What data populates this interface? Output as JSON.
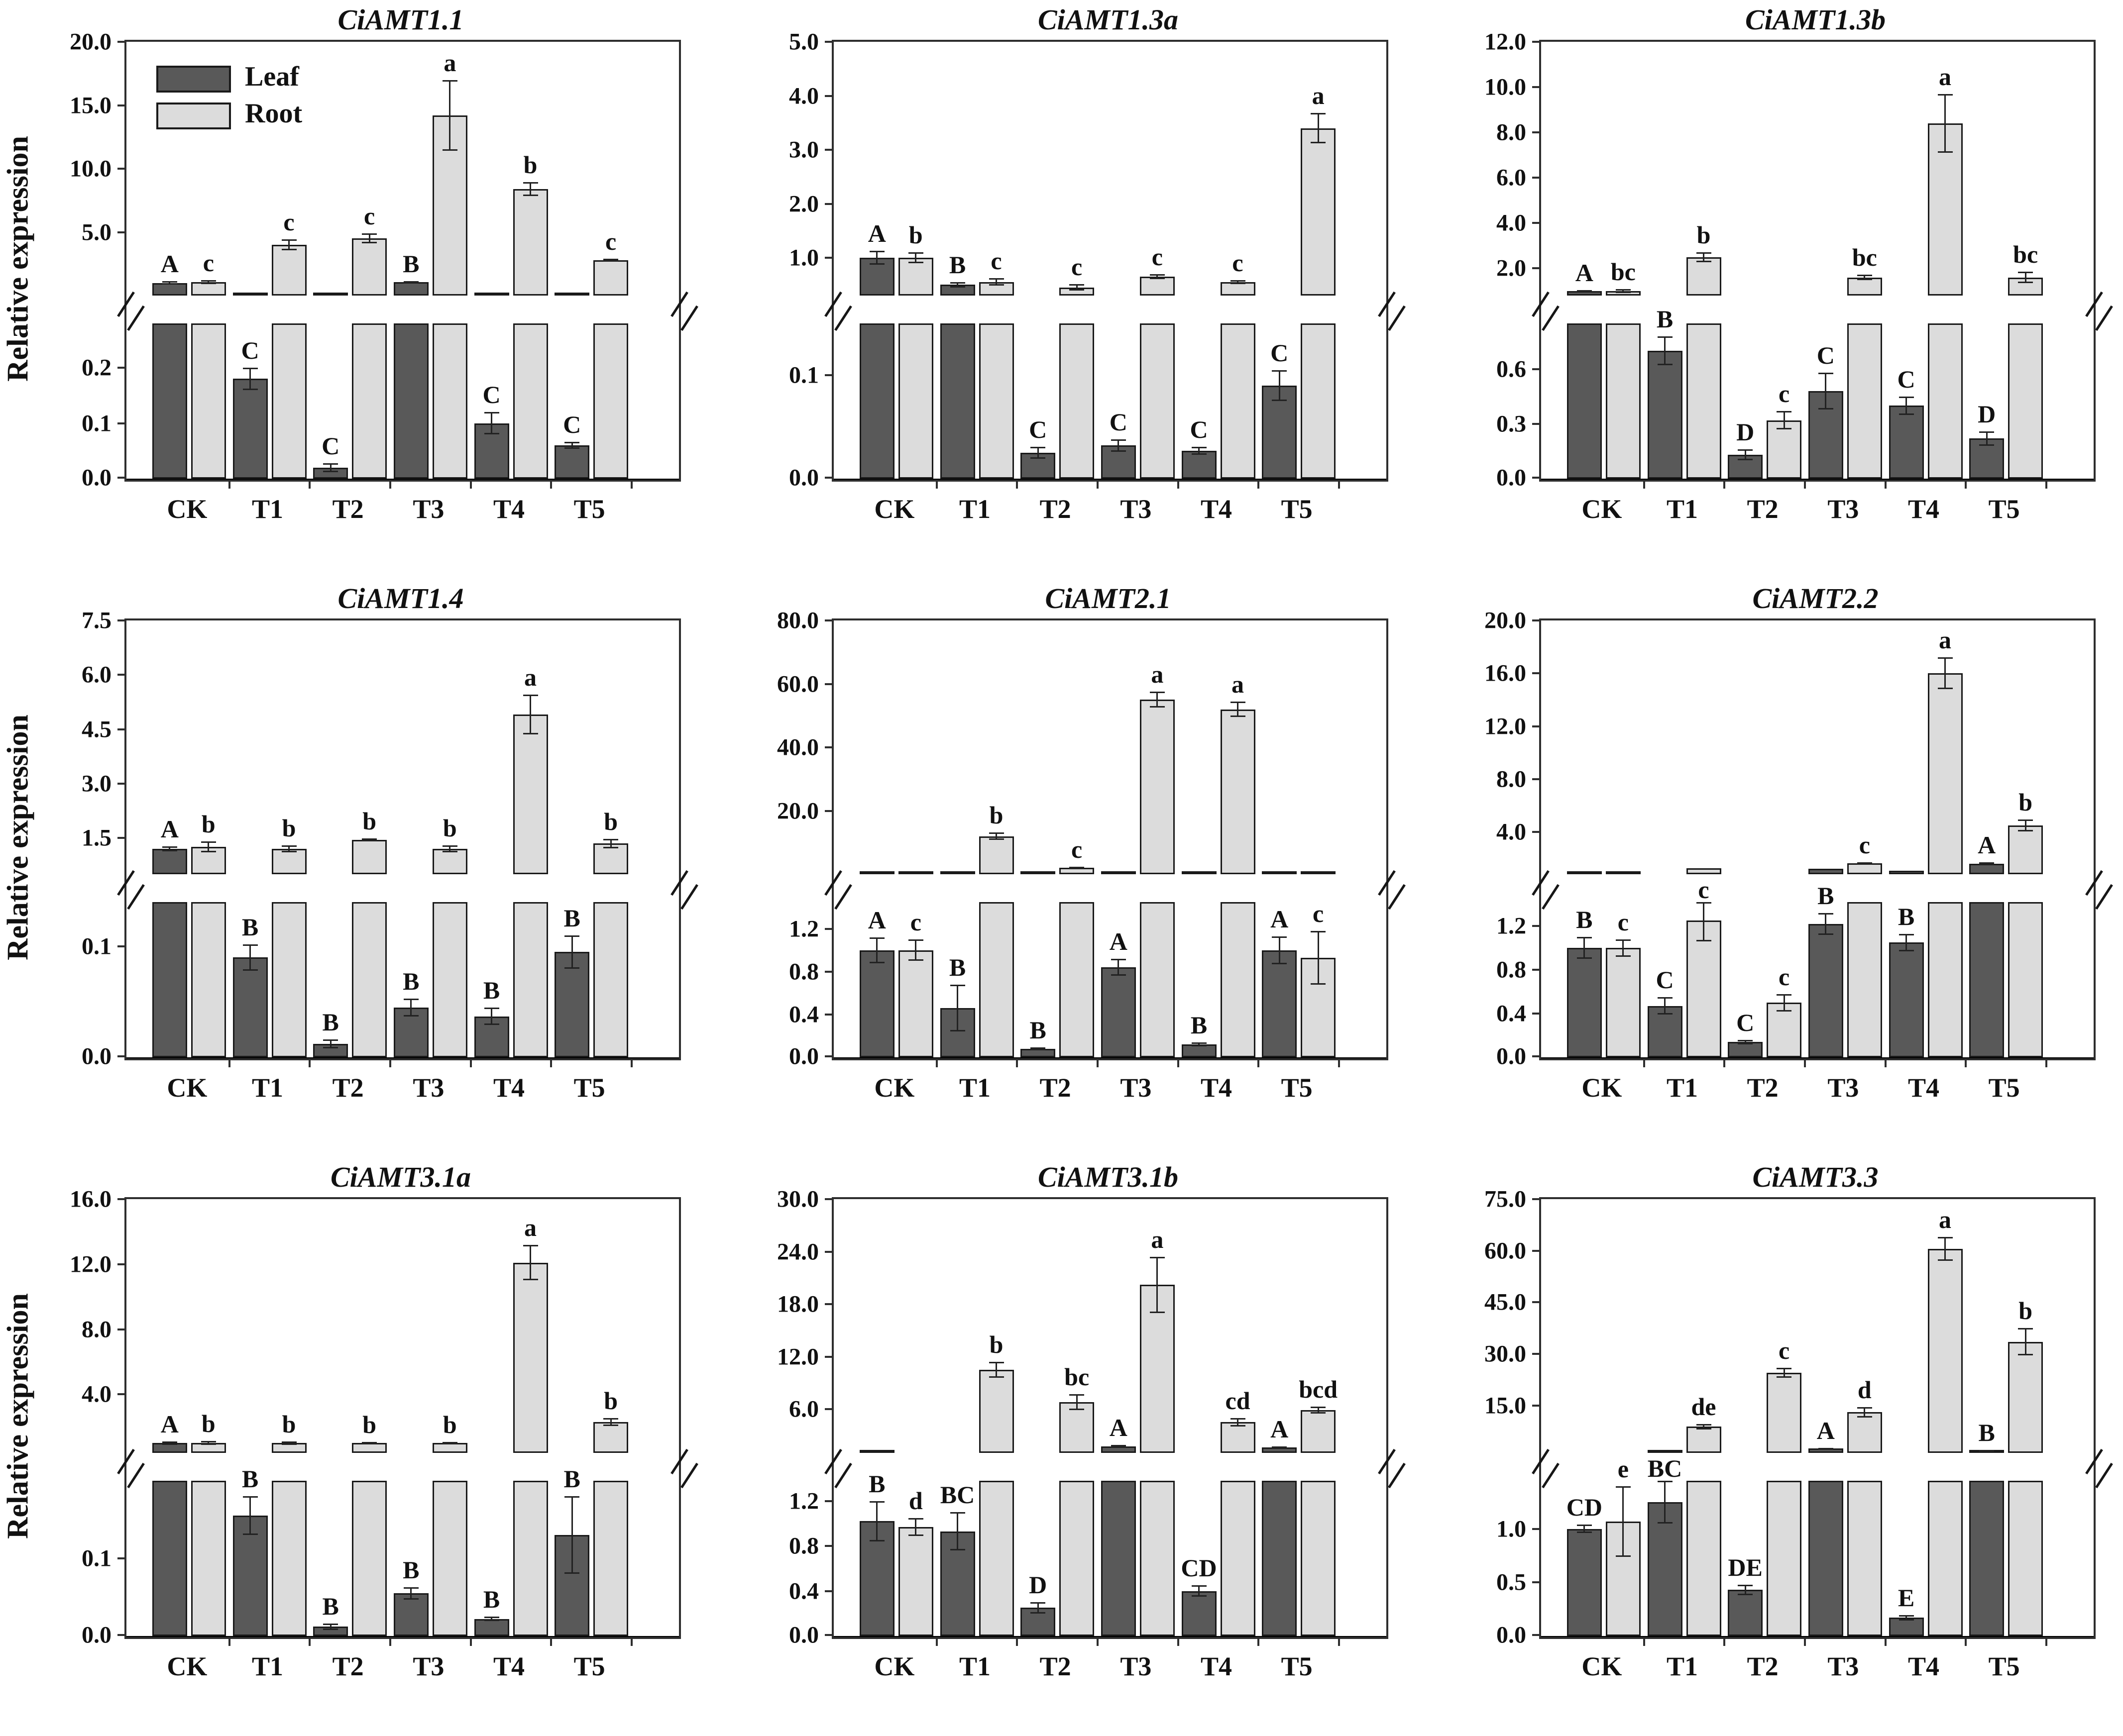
{
  "figure": {
    "ylabel": "Relative expression",
    "categories": [
      "CK",
      "T1",
      "T2",
      "T3",
      "T4",
      "T5"
    ],
    "legend": {
      "items": [
        {
          "label": "Leaf"
        },
        {
          "label": "Root"
        }
      ],
      "position": "top-left-first-panel"
    },
    "colors": {
      "leaf_fill": "#595959",
      "root_fill": "#dcdcdc",
      "bar_border": "#1a1a1a",
      "frame": "#2e2e2e",
      "text": "#111111",
      "background": "#ffffff"
    }
  },
  "chart_data": [
    {
      "type": "bar",
      "title": "CiAMT1.1",
      "categories": [
        "CK",
        "T1",
        "T2",
        "T3",
        "T4",
        "T5"
      ],
      "axis": {
        "upper_ticks": [
          5,
          10,
          15,
          20
        ],
        "upper_tick_labels": [
          "5.0",
          "10.0",
          "15.0",
          "20.0"
        ],
        "upper_start": 0,
        "upper_max": 20,
        "lower_ticks": [
          0,
          0.1,
          0.2
        ],
        "lower_tick_labels": [
          "0.0",
          "0.1",
          "0.2"
        ],
        "lower_max": 0.28,
        "broken": true
      },
      "series": [
        {
          "name": "Leaf",
          "values": [
            1.0,
            0.18,
            0.02,
            1.05,
            0.1,
            0.06
          ],
          "errors": [
            0.15,
            0.02,
            0.008,
            0.1,
            0.02,
            0.006
          ],
          "letters": [
            "A",
            "C",
            "C",
            "B",
            "C",
            "C"
          ]
        },
        {
          "name": "Root",
          "values": [
            1.05,
            4.0,
            4.5,
            14.2,
            8.4,
            2.8
          ],
          "errors": [
            0.15,
            0.45,
            0.4,
            2.8,
            0.55,
            0.12
          ],
          "letters": [
            "c",
            "c",
            "c",
            "a",
            "b",
            "c"
          ]
        }
      ]
    },
    {
      "type": "bar",
      "title": "CiAMT1.3a",
      "categories": [
        "CK",
        "T1",
        "T2",
        "T3",
        "T4",
        "T5"
      ],
      "axis": {
        "upper_ticks": [
          1,
          2,
          3,
          4,
          5
        ],
        "upper_tick_labels": [
          "1.0",
          "2.0",
          "3.0",
          "4.0",
          "5.0"
        ],
        "upper_start": 0.3,
        "upper_max": 5,
        "lower_ticks": [
          0,
          0.1
        ],
        "lower_tick_labels": [
          "0.0",
          "0.1"
        ],
        "lower_max": 0.15,
        "broken": true
      },
      "series": [
        {
          "name": "Leaf",
          "values": [
            1.0,
            0.5,
            0.025,
            0.032,
            0.027,
            0.09
          ],
          "errors": [
            0.13,
            0.05,
            0.006,
            0.006,
            0.004,
            0.015
          ],
          "letters": [
            "A",
            "B",
            "C",
            "C",
            "C",
            "C"
          ]
        },
        {
          "name": "Root",
          "values": [
            1.0,
            0.55,
            0.45,
            0.65,
            0.55,
            3.4
          ],
          "errors": [
            0.1,
            0.07,
            0.06,
            0.05,
            0.04,
            0.28
          ],
          "letters": [
            "b",
            "c",
            "c",
            "c",
            "c",
            "a"
          ]
        }
      ]
    },
    {
      "type": "bar",
      "title": "CiAMT1.3b",
      "categories": [
        "CK",
        "T1",
        "T2",
        "T3",
        "T4",
        "T5"
      ],
      "axis": {
        "upper_ticks": [
          2,
          4,
          6,
          8,
          10,
          12
        ],
        "upper_tick_labels": [
          "2.0",
          "4.0",
          "6.0",
          "8.0",
          "10.0",
          "12.0"
        ],
        "upper_start": 0.8,
        "upper_max": 12,
        "lower_ticks": [
          0,
          0.3,
          0.6
        ],
        "lower_tick_labels": [
          "0.0",
          "0.3",
          "0.6"
        ],
        "lower_max": 0.85,
        "broken": true
      },
      "series": [
        {
          "name": "Leaf",
          "values": [
            1.0,
            0.7,
            0.13,
            0.48,
            0.4,
            0.22
          ],
          "errors": [
            0.05,
            0.08,
            0.03,
            0.1,
            0.05,
            0.04
          ],
          "letters": [
            "A",
            "B",
            "D",
            "C",
            "C",
            "D"
          ]
        },
        {
          "name": "Root",
          "values": [
            1.0,
            2.5,
            0.32,
            1.6,
            8.4,
            1.6
          ],
          "errors": [
            0.08,
            0.22,
            0.05,
            0.12,
            1.3,
            0.25
          ],
          "letters": [
            "bc",
            "b",
            "c",
            "bc",
            "a",
            "bc"
          ]
        }
      ]
    },
    {
      "type": "bar",
      "title": "CiAMT1.4",
      "categories": [
        "CK",
        "T1",
        "T2",
        "T3",
        "T4",
        "T5"
      ],
      "axis": {
        "upper_ticks": [
          1.5,
          3.0,
          4.5,
          6.0,
          7.5
        ],
        "upper_tick_labels": [
          "1.5",
          "3.0",
          "4.5",
          "6.0",
          "7.5"
        ],
        "upper_start": 0.5,
        "upper_max": 7.5,
        "lower_ticks": [
          0,
          0.1
        ],
        "lower_tick_labels": [
          "0.0",
          "0.1"
        ],
        "lower_max": 0.14,
        "broken": true
      },
      "series": [
        {
          "name": "Leaf",
          "values": [
            1.2,
            0.09,
            0.012,
            0.045,
            0.037,
            0.095
          ],
          "errors": [
            0.07,
            0.012,
            0.004,
            0.008,
            0.008,
            0.015
          ],
          "letters": [
            "A",
            "B",
            "B",
            "B",
            "B",
            "B"
          ]
        },
        {
          "name": "Root",
          "values": [
            1.25,
            1.2,
            1.45,
            1.2,
            4.9,
            1.35
          ],
          "errors": [
            0.15,
            0.1,
            0.04,
            0.09,
            0.55,
            0.13
          ],
          "letters": [
            "b",
            "b",
            "b",
            "b",
            "a",
            "b"
          ]
        }
      ]
    },
    {
      "type": "bar",
      "title": "CiAMT2.1",
      "categories": [
        "CK",
        "T1",
        "T2",
        "T3",
        "T4",
        "T5"
      ],
      "axis": {
        "upper_ticks": [
          20,
          40,
          60,
          80
        ],
        "upper_tick_labels": [
          "20.0",
          "40.0",
          "60.0",
          "80.0"
        ],
        "upper_start": 0,
        "upper_max": 80,
        "lower_ticks": [
          0,
          0.4,
          0.8,
          1.2
        ],
        "lower_tick_labels": [
          "0.0",
          "0.4",
          "0.8",
          "1.2"
        ],
        "lower_max": 1.45,
        "broken": true
      },
      "series": [
        {
          "name": "Leaf",
          "values": [
            1.0,
            0.46,
            0.08,
            0.84,
            0.12,
            1.0
          ],
          "errors": [
            0.12,
            0.22,
            0.015,
            0.08,
            0.02,
            0.13
          ],
          "letters": [
            "A",
            "B",
            "B",
            "A",
            "B",
            "A"
          ]
        },
        {
          "name": "Root",
          "values": [
            1.0,
            12.0,
            2.0,
            55.0,
            52.0,
            0.93
          ],
          "errors": [
            0.1,
            1.2,
            0.3,
            2.5,
            2.5,
            0.25
          ],
          "letters": [
            "c",
            "b",
            "c",
            "a",
            "a",
            "c"
          ]
        }
      ]
    },
    {
      "type": "bar",
      "title": "CiAMT2.2",
      "categories": [
        "CK",
        "T1",
        "T2",
        "T3",
        "T4",
        "T5"
      ],
      "axis": {
        "upper_ticks": [
          4,
          8,
          12,
          16,
          20
        ],
        "upper_tick_labels": [
          "4.0",
          "8.0",
          "12.0",
          "16.0",
          "20.0"
        ],
        "upper_start": 0.8,
        "upper_max": 20,
        "lower_ticks": [
          0,
          0.4,
          0.8,
          1.2
        ],
        "lower_tick_labels": [
          "0.0",
          "0.4",
          "0.8",
          "1.2"
        ],
        "lower_max": 1.42,
        "broken": true
      },
      "series": [
        {
          "name": "Leaf",
          "values": [
            1.0,
            0.47,
            0.14,
            1.22,
            1.05,
            1.6
          ],
          "errors": [
            0.1,
            0.08,
            0.02,
            0.1,
            0.08,
            0.1
          ],
          "letters": [
            "B",
            "C",
            "C",
            "B",
            "B",
            "A"
          ]
        },
        {
          "name": "Root",
          "values": [
            1.0,
            1.25,
            0.5,
            1.62,
            16.0,
            4.5
          ],
          "errors": [
            0.08,
            0.18,
            0.08,
            0.1,
            1.2,
            0.45
          ],
          "letters": [
            "c",
            "c",
            "c",
            "c",
            "a",
            "b"
          ]
        }
      ]
    },
    {
      "type": "bar",
      "title": "CiAMT3.1a",
      "categories": [
        "CK",
        "T1",
        "T2",
        "T3",
        "T4",
        "T5"
      ],
      "axis": {
        "upper_ticks": [
          4,
          8,
          12,
          16
        ],
        "upper_tick_labels": [
          "4.0",
          "8.0",
          "12.0",
          "16.0"
        ],
        "upper_start": 0.4,
        "upper_max": 16,
        "lower_ticks": [
          0,
          0.1
        ],
        "lower_tick_labels": [
          "0.0",
          "0.1"
        ],
        "lower_max": 0.2,
        "broken": true
      },
      "series": [
        {
          "name": "Leaf",
          "values": [
            1.0,
            0.155,
            0.012,
            0.055,
            0.022,
            0.13
          ],
          "errors": [
            0.1,
            0.025,
            0.004,
            0.008,
            0.003,
            0.05
          ],
          "letters": [
            "A",
            "B",
            "B",
            "B",
            "B",
            "B"
          ]
        },
        {
          "name": "Root",
          "values": [
            1.0,
            1.0,
            1.0,
            1.0,
            12.1,
            2.3
          ],
          "errors": [
            0.12,
            0.1,
            0.08,
            0.08,
            1.1,
            0.25
          ],
          "letters": [
            "b",
            "b",
            "b",
            "b",
            "a",
            "b"
          ]
        }
      ]
    },
    {
      "type": "bar",
      "title": "CiAMT3.1b",
      "categories": [
        "CK",
        "T1",
        "T2",
        "T3",
        "T4",
        "T5"
      ],
      "axis": {
        "upper_ticks": [
          6,
          12,
          18,
          24,
          30
        ],
        "upper_tick_labels": [
          "6.0",
          "12.0",
          "18.0",
          "24.0",
          "30.0"
        ],
        "upper_start": 1.0,
        "upper_max": 30,
        "lower_ticks": [
          0,
          0.4,
          0.8,
          1.2
        ],
        "lower_tick_labels": [
          "0.0",
          "0.4",
          "0.8",
          "1.2"
        ],
        "lower_max": 1.38,
        "broken": true
      },
      "series": [
        {
          "name": "Leaf",
          "values": [
            1.02,
            0.93,
            0.25,
            1.75,
            0.4,
            1.65
          ],
          "errors": [
            0.18,
            0.17,
            0.05,
            0.15,
            0.05,
            0.1
          ],
          "letters": [
            "B",
            "BC",
            "D",
            "A",
            "CD",
            "A"
          ]
        },
        {
          "name": "Root",
          "values": [
            0.97,
            10.5,
            6.8,
            20.2,
            4.5,
            5.9
          ],
          "errors": [
            0.08,
            0.9,
            0.9,
            3.2,
            0.5,
            0.4
          ],
          "letters": [
            "d",
            "b",
            "bc",
            "a",
            "cd",
            "bcd"
          ]
        }
      ]
    },
    {
      "type": "bar",
      "title": "CiAMT3.3",
      "categories": [
        "CK",
        "T1",
        "T2",
        "T3",
        "T4",
        "T5"
      ],
      "axis": {
        "upper_ticks": [
          15,
          30,
          45,
          60,
          75
        ],
        "upper_tick_labels": [
          "15.0",
          "30.0",
          "45.0",
          "60.0",
          "75.0"
        ],
        "upper_start": 1.2,
        "upper_max": 75,
        "lower_ticks": [
          0,
          0.5,
          1.0
        ],
        "lower_tick_labels": [
          "0.0",
          "0.5",
          "1.0"
        ],
        "lower_max": 1.45,
        "broken": true
      },
      "series": [
        {
          "name": "Leaf",
          "values": [
            1.0,
            1.25,
            0.43,
            2.5,
            0.17,
            2.0
          ],
          "errors": [
            0.04,
            0.2,
            0.05,
            0.12,
            0.025,
            0.08
          ],
          "letters": [
            "CD",
            "BC",
            "DE",
            "A",
            "E",
            "B"
          ]
        },
        {
          "name": "Root",
          "values": [
            1.07,
            8.8,
            24.5,
            13.0,
            60.5,
            33.5
          ],
          "errors": [
            0.33,
            0.8,
            1.5,
            1.5,
            3.5,
            4.0
          ],
          "letters": [
            "e",
            "de",
            "c",
            "d",
            "a",
            "b"
          ]
        }
      ]
    }
  ]
}
